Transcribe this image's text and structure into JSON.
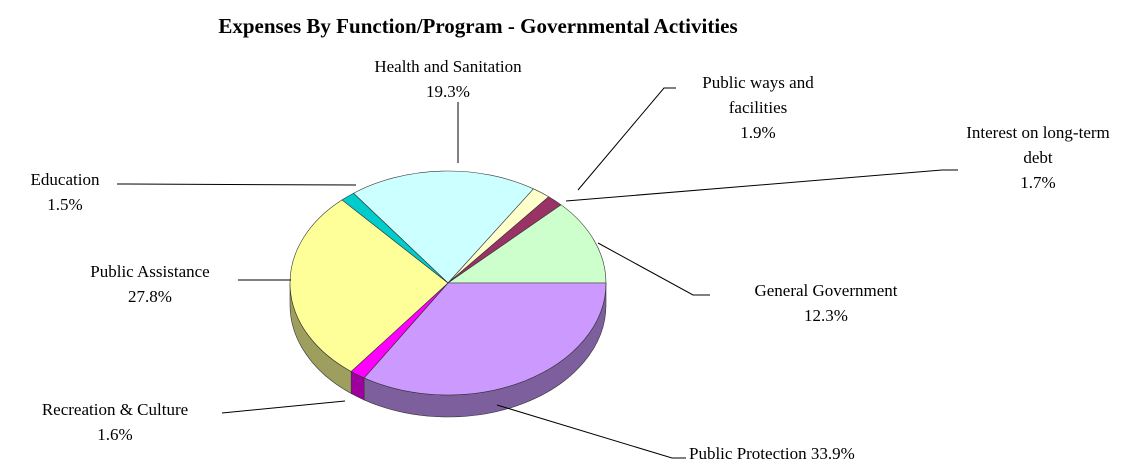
{
  "chart_data": {
    "type": "pie",
    "title": "Expenses By Function/Program - Governmental Activities",
    "categories": [
      "Health and Sanitation",
      "Public ways and facilities",
      "Interest on long-term debt",
      "General Government",
      "Public Protection",
      "Recreation & Culture",
      "Public Assistance",
      "Education"
    ],
    "values": [
      19.3,
      1.9,
      1.7,
      12.3,
      33.9,
      1.6,
      27.8,
      1.5
    ],
    "value_labels": [
      "19.3%",
      "1.9%",
      "1.7%",
      "12.3%",
      "33.9%",
      "1.6%",
      "27.8%",
      "1.5%"
    ],
    "colors": [
      "#ccffff",
      "#ffffcc",
      "#993366",
      "#ccffcc",
      "#cc99ff",
      "#ff00ff",
      "#ffff99",
      "#00cccc"
    ],
    "three_d": true
  }
}
